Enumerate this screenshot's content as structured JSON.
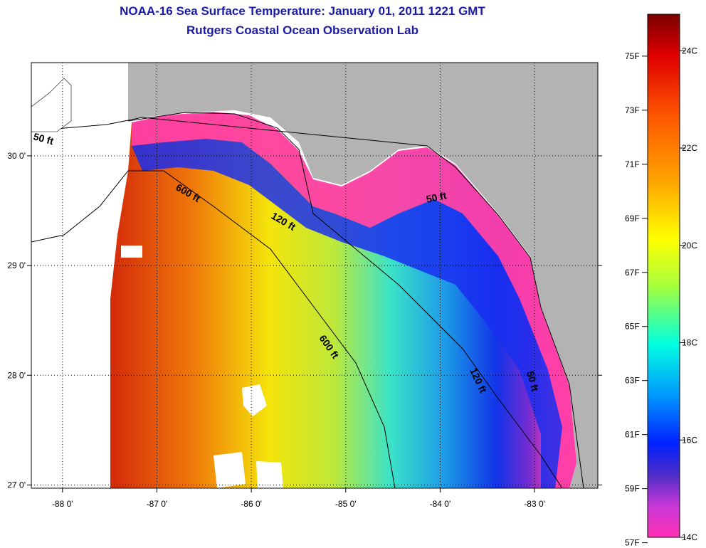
{
  "header": {
    "title": "NOAA-16 Sea Surface Temperature:  January 01, 2011 1221 GMT",
    "subtitle": "Rutgers Coastal Ocean Observation Lab"
  },
  "map": {
    "lat_labels": [
      "30 0'",
      "29 0'",
      "28 0'",
      "27 0'"
    ],
    "lon_labels": [
      "-88 0'",
      "-87 0'",
      "-86 0'",
      "-85 0'",
      "-84 0'",
      "-83 0'"
    ],
    "lat_values": [
      30,
      29,
      28,
      27
    ],
    "lon_values": [
      -88,
      -87,
      -86,
      -85,
      -84,
      -83
    ],
    "extent": {
      "lon": [
        -88.33,
        -82.33
      ],
      "lat": [
        26.97,
        30.85
      ]
    },
    "land_color": "#b3b3b3",
    "isobath_labels": [
      {
        "text": "50 ft"
      },
      {
        "text": "600 ft"
      },
      {
        "text": "120 ft"
      },
      {
        "text": "50 ft"
      },
      {
        "text": "600 ft"
      },
      {
        "text": "120 ft"
      },
      {
        "text": "50 ft"
      }
    ]
  },
  "colorbar": {
    "fahrenheit_labels": [
      "75F",
      "73F",
      "71F",
      "69F",
      "67F",
      "65F",
      "63F",
      "61F",
      "59F",
      "57F"
    ],
    "fahrenheit_values": [
      75,
      73,
      71,
      69,
      67,
      65,
      63,
      61,
      59,
      57
    ],
    "celsius_labels": [
      "24C",
      "22C",
      "20C",
      "18C",
      "16C",
      "14C"
    ],
    "celsius_values": [
      24,
      22,
      20,
      18,
      16,
      14
    ],
    "range_celsius": [
      14,
      24.75
    ]
  }
}
